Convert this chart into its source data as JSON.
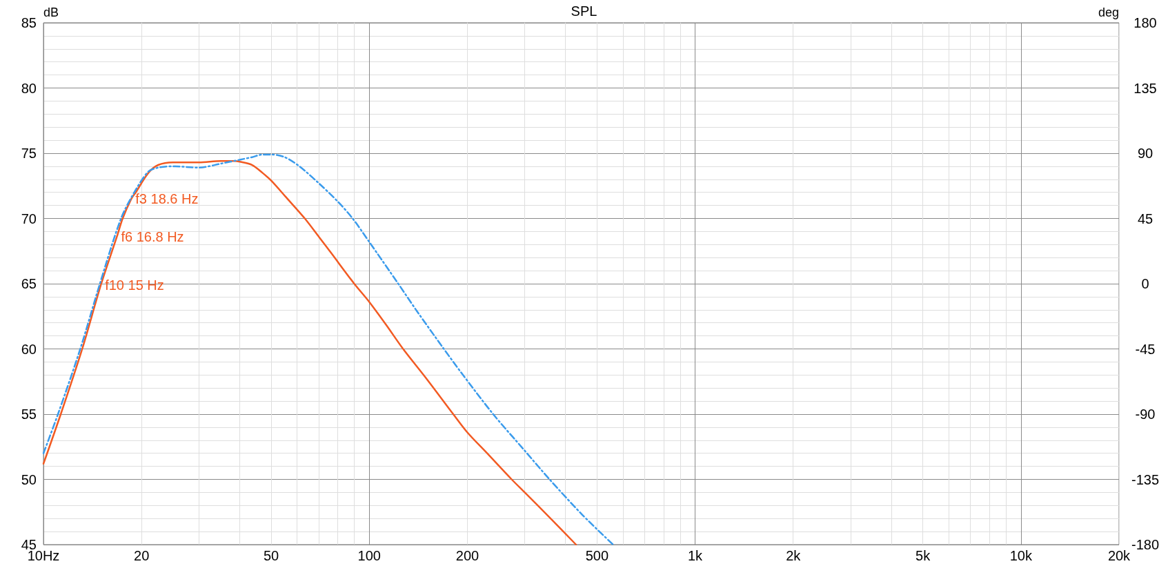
{
  "chart_data": {
    "type": "line",
    "title": "SPL",
    "ylabel": "dB",
    "y2label": "deg",
    "log": "x",
    "grid": true,
    "line_style": "solid",
    "xlim": [
      10,
      20000
    ],
    "xticks": [
      {
        "value": 10,
        "label": "10Hz"
      },
      20,
      {
        "value": 30,
        "label": null
      },
      {
        "value": 40,
        "label": null
      },
      50,
      {
        "value": 60,
        "label": null
      },
      {
        "value": 70,
        "label": null
      },
      {
        "value": 80,
        "label": null
      },
      {
        "value": 90,
        "label": null
      },
      100,
      200,
      {
        "value": 300,
        "label": null
      },
      {
        "value": 400,
        "label": null
      },
      500,
      {
        "value": 600,
        "label": null
      },
      {
        "value": 700,
        "label": null
      },
      {
        "value": 800,
        "label": null
      },
      {
        "value": 900,
        "label": null
      },
      {
        "value": 1000,
        "label": "1k"
      },
      {
        "value": 2000,
        "label": "2k"
      },
      {
        "value": 3000,
        "label": null
      },
      {
        "value": 4000,
        "label": null
      },
      {
        "value": 5000,
        "label": "5k"
      },
      {
        "value": 6000,
        "label": null
      },
      {
        "value": 7000,
        "label": null
      },
      {
        "value": 8000,
        "label": null
      },
      {
        "value": 9000,
        "label": null
      },
      {
        "value": 10000,
        "label": "10k"
      },
      {
        "value": 20000,
        "label": "20k"
      }
    ],
    "ylim": [
      45,
      85
    ],
    "yticks": [
      45,
      50,
      55,
      60,
      65,
      70,
      75,
      80,
      85
    ],
    "y2lim": [
      -180,
      180
    ],
    "y2ticks": [
      -180,
      -135,
      -90,
      -45,
      0,
      45,
      90,
      135,
      180
    ],
    "series": [
      {
        "color": "#f25a22",
        "x": [
          10,
          11.3,
          13.15,
          15,
          16.8,
          17.5,
          18.6,
          19.2,
          21,
          22.5,
          25,
          30,
          35,
          38.5,
          40,
          43.7,
          47,
          50,
          55.2,
          63.4,
          70,
          76.4,
          89.9,
          100,
          113,
          127,
          150,
          181,
          200,
          230,
          273.5,
          300,
          363.5,
          431
        ],
        "values": [
          51.2,
          55,
          60,
          64.9,
          68.6,
          70,
          71.5,
          72,
          73.5,
          74.1,
          74.3,
          74.3,
          74.4,
          74.4,
          74.35,
          74.1,
          73.5,
          72.9,
          71.7,
          70,
          68.6,
          67.35,
          65,
          63.6,
          61.8,
          60,
          57.7,
          55,
          53.6,
          52,
          50,
          49,
          46.9,
          45
        ]
      },
      {
        "color": "#3a9bec",
        "line_style": "dashdot",
        "x": [
          10,
          11.08,
          12.97,
          14.9,
          17.3,
          19.2,
          21,
          22.5,
          25,
          30,
          35,
          40,
          43.7,
          47,
          50,
          55,
          61,
          70,
          80,
          88.9,
          100,
          122.7,
          140,
          169.4,
          191.3,
          240,
          300,
          357.5,
          450,
          560
        ],
        "values": [
          52,
          55,
          60,
          65,
          70,
          72.2,
          73.6,
          73.9,
          74,
          73.9,
          74.2,
          74.5,
          74.7,
          74.9,
          74.9,
          74.7,
          74,
          72.7,
          71.3,
          70,
          68.2,
          65,
          62.9,
          60,
          58.2,
          55,
          52.2,
          50,
          47.3,
          45
        ]
      }
    ],
    "annotations": [
      {
        "text": "f3 18.6 Hz",
        "x": 18.6,
        "y": 71.5
      },
      {
        "text": "f6 16.8 Hz",
        "x": 16.8,
        "y": 68.6
      },
      {
        "text": "f10 15 Hz",
        "x": 15,
        "y": 64.9
      }
    ]
  }
}
